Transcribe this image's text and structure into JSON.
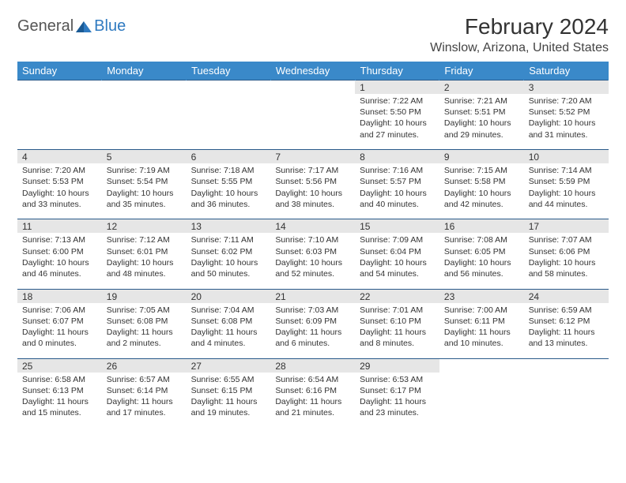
{
  "logo": {
    "text1": "General",
    "text2": "Blue"
  },
  "title": "February 2024",
  "location": "Winslow, Arizona, United States",
  "colors": {
    "header_bg": "#3a89c9",
    "header_text": "#ffffff",
    "daynum_bg": "#e6e6e6",
    "border": "#2a5a8a",
    "body_text": "#333333",
    "logo_gray": "#555555",
    "logo_blue": "#2f7ac0"
  },
  "weekdays": [
    "Sunday",
    "Monday",
    "Tuesday",
    "Wednesday",
    "Thursday",
    "Friday",
    "Saturday"
  ],
  "weeks": [
    [
      null,
      null,
      null,
      null,
      {
        "n": "1",
        "sr": "Sunrise: 7:22 AM",
        "ss": "Sunset: 5:50 PM",
        "d1": "Daylight: 10 hours",
        "d2": "and 27 minutes."
      },
      {
        "n": "2",
        "sr": "Sunrise: 7:21 AM",
        "ss": "Sunset: 5:51 PM",
        "d1": "Daylight: 10 hours",
        "d2": "and 29 minutes."
      },
      {
        "n": "3",
        "sr": "Sunrise: 7:20 AM",
        "ss": "Sunset: 5:52 PM",
        "d1": "Daylight: 10 hours",
        "d2": "and 31 minutes."
      }
    ],
    [
      {
        "n": "4",
        "sr": "Sunrise: 7:20 AM",
        "ss": "Sunset: 5:53 PM",
        "d1": "Daylight: 10 hours",
        "d2": "and 33 minutes."
      },
      {
        "n": "5",
        "sr": "Sunrise: 7:19 AM",
        "ss": "Sunset: 5:54 PM",
        "d1": "Daylight: 10 hours",
        "d2": "and 35 minutes."
      },
      {
        "n": "6",
        "sr": "Sunrise: 7:18 AM",
        "ss": "Sunset: 5:55 PM",
        "d1": "Daylight: 10 hours",
        "d2": "and 36 minutes."
      },
      {
        "n": "7",
        "sr": "Sunrise: 7:17 AM",
        "ss": "Sunset: 5:56 PM",
        "d1": "Daylight: 10 hours",
        "d2": "and 38 minutes."
      },
      {
        "n": "8",
        "sr": "Sunrise: 7:16 AM",
        "ss": "Sunset: 5:57 PM",
        "d1": "Daylight: 10 hours",
        "d2": "and 40 minutes."
      },
      {
        "n": "9",
        "sr": "Sunrise: 7:15 AM",
        "ss": "Sunset: 5:58 PM",
        "d1": "Daylight: 10 hours",
        "d2": "and 42 minutes."
      },
      {
        "n": "10",
        "sr": "Sunrise: 7:14 AM",
        "ss": "Sunset: 5:59 PM",
        "d1": "Daylight: 10 hours",
        "d2": "and 44 minutes."
      }
    ],
    [
      {
        "n": "11",
        "sr": "Sunrise: 7:13 AM",
        "ss": "Sunset: 6:00 PM",
        "d1": "Daylight: 10 hours",
        "d2": "and 46 minutes."
      },
      {
        "n": "12",
        "sr": "Sunrise: 7:12 AM",
        "ss": "Sunset: 6:01 PM",
        "d1": "Daylight: 10 hours",
        "d2": "and 48 minutes."
      },
      {
        "n": "13",
        "sr": "Sunrise: 7:11 AM",
        "ss": "Sunset: 6:02 PM",
        "d1": "Daylight: 10 hours",
        "d2": "and 50 minutes."
      },
      {
        "n": "14",
        "sr": "Sunrise: 7:10 AM",
        "ss": "Sunset: 6:03 PM",
        "d1": "Daylight: 10 hours",
        "d2": "and 52 minutes."
      },
      {
        "n": "15",
        "sr": "Sunrise: 7:09 AM",
        "ss": "Sunset: 6:04 PM",
        "d1": "Daylight: 10 hours",
        "d2": "and 54 minutes."
      },
      {
        "n": "16",
        "sr": "Sunrise: 7:08 AM",
        "ss": "Sunset: 6:05 PM",
        "d1": "Daylight: 10 hours",
        "d2": "and 56 minutes."
      },
      {
        "n": "17",
        "sr": "Sunrise: 7:07 AM",
        "ss": "Sunset: 6:06 PM",
        "d1": "Daylight: 10 hours",
        "d2": "and 58 minutes."
      }
    ],
    [
      {
        "n": "18",
        "sr": "Sunrise: 7:06 AM",
        "ss": "Sunset: 6:07 PM",
        "d1": "Daylight: 11 hours",
        "d2": "and 0 minutes."
      },
      {
        "n": "19",
        "sr": "Sunrise: 7:05 AM",
        "ss": "Sunset: 6:08 PM",
        "d1": "Daylight: 11 hours",
        "d2": "and 2 minutes."
      },
      {
        "n": "20",
        "sr": "Sunrise: 7:04 AM",
        "ss": "Sunset: 6:08 PM",
        "d1": "Daylight: 11 hours",
        "d2": "and 4 minutes."
      },
      {
        "n": "21",
        "sr": "Sunrise: 7:03 AM",
        "ss": "Sunset: 6:09 PM",
        "d1": "Daylight: 11 hours",
        "d2": "and 6 minutes."
      },
      {
        "n": "22",
        "sr": "Sunrise: 7:01 AM",
        "ss": "Sunset: 6:10 PM",
        "d1": "Daylight: 11 hours",
        "d2": "and 8 minutes."
      },
      {
        "n": "23",
        "sr": "Sunrise: 7:00 AM",
        "ss": "Sunset: 6:11 PM",
        "d1": "Daylight: 11 hours",
        "d2": "and 10 minutes."
      },
      {
        "n": "24",
        "sr": "Sunrise: 6:59 AM",
        "ss": "Sunset: 6:12 PM",
        "d1": "Daylight: 11 hours",
        "d2": "and 13 minutes."
      }
    ],
    [
      {
        "n": "25",
        "sr": "Sunrise: 6:58 AM",
        "ss": "Sunset: 6:13 PM",
        "d1": "Daylight: 11 hours",
        "d2": "and 15 minutes."
      },
      {
        "n": "26",
        "sr": "Sunrise: 6:57 AM",
        "ss": "Sunset: 6:14 PM",
        "d1": "Daylight: 11 hours",
        "d2": "and 17 minutes."
      },
      {
        "n": "27",
        "sr": "Sunrise: 6:55 AM",
        "ss": "Sunset: 6:15 PM",
        "d1": "Daylight: 11 hours",
        "d2": "and 19 minutes."
      },
      {
        "n": "28",
        "sr": "Sunrise: 6:54 AM",
        "ss": "Sunset: 6:16 PM",
        "d1": "Daylight: 11 hours",
        "d2": "and 21 minutes."
      },
      {
        "n": "29",
        "sr": "Sunrise: 6:53 AM",
        "ss": "Sunset: 6:17 PM",
        "d1": "Daylight: 11 hours",
        "d2": "and 23 minutes."
      },
      null,
      null
    ]
  ]
}
